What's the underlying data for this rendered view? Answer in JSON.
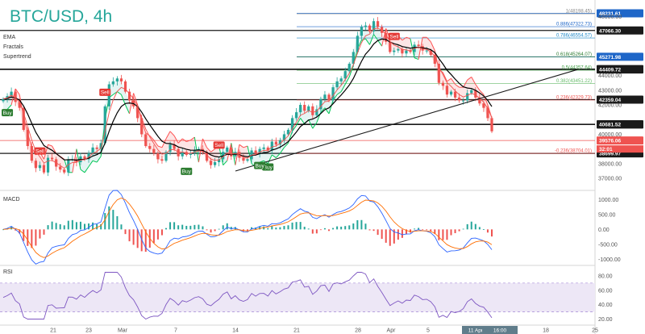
{
  "header": {
    "title": "BTC/USD, 4h",
    "indicators": [
      "EMA",
      "Fractals",
      "Supertrend"
    ]
  },
  "panels": {
    "macd_label": "MACD",
    "rsi_label": "RSI"
  },
  "chart_data": [
    {
      "type": "candlestick",
      "title": "BTC/USD, 4h",
      "x_ticks": [
        "21",
        "23",
        "Mar",
        "7",
        "14",
        "21",
        "28",
        "Apr",
        "5",
        "11 Apr '22",
        "16:00",
        "18",
        "25"
      ],
      "y_ticks": [
        "37000.00",
        "38000.00",
        "40000.00",
        "42000.00",
        "43000.00",
        "44000.00",
        "48000.00"
      ],
      "ylim": [
        36400,
        48700
      ],
      "close_series": [
        42400,
        42600,
        42900,
        42200,
        41800,
        40300,
        39200,
        38200,
        37700,
        37900,
        37400,
        38400,
        38300,
        37800,
        37600,
        37400,
        38300,
        38300,
        38100,
        38500,
        38300,
        38700,
        39100,
        39000,
        39400,
        41900,
        43400,
        43600,
        43800,
        43600,
        42900,
        42300,
        41900,
        41100,
        40000,
        39200,
        39000,
        38700,
        38300,
        38200,
        38800,
        39300,
        39000,
        38500,
        38800,
        38600,
        38700,
        38900,
        39000,
        38800,
        38200,
        37900,
        38100,
        38300,
        38800,
        39100,
        38500,
        38800,
        38400,
        38200,
        38300,
        38900,
        38700,
        39000,
        39100,
        38900,
        39500,
        39300,
        39600,
        40000,
        40300,
        41100,
        41500,
        42000,
        41600,
        41900,
        41300,
        41700,
        42400,
        42700,
        42300,
        43200,
        43600,
        43800,
        44300,
        44800,
        45600,
        46700,
        47300,
        47400,
        47000,
        47700,
        47300,
        46900,
        46300,
        45600,
        45700,
        45800,
        45500,
        45700,
        45600,
        46100,
        46000,
        45700,
        45700,
        45400,
        44800,
        43500,
        43300,
        42700,
        42900,
        42500,
        42300,
        42300,
        42800,
        43000,
        42500,
        42100,
        41800,
        41100,
        40200
      ],
      "levels": [
        {
          "label": "48231.61",
          "value": 48231.61,
          "color": "#1e66c8"
        },
        {
          "label": "47066.30",
          "value": 47066.3,
          "color": "#1a1a1a"
        },
        {
          "label": "45271.98",
          "value": 45271.98,
          "color": "#1e66c8"
        },
        {
          "label": "44438.29",
          "value": 44438.29,
          "color": "#1a1a1a"
        },
        {
          "label": "44409.72",
          "value": 44409.72,
          "color": "#1a1a1a"
        },
        {
          "label": "42359.04",
          "value": 42359.04,
          "color": "#1a1a1a"
        },
        {
          "label": "40659.96",
          "value": 40659.96,
          "color": "#1a1a1a"
        },
        {
          "label": "40681.52",
          "value": 40681.52,
          "color": "#1a1a1a"
        },
        {
          "label": "39576.06",
          "value": 39576.06,
          "color": "#ef5350"
        },
        {
          "label": "38699.97",
          "value": 38699.97,
          "color": "#1a1a1a"
        }
      ],
      "fib_levels": [
        {
          "label": "1(48198.45)",
          "value": 48198.45,
          "color": "#888888"
        },
        {
          "label": "0.886(47322.73)",
          "value": 47322.73,
          "color": "#1e66c8"
        },
        {
          "label": "0.786(46554.57)",
          "value": 46554.57,
          "color": "#1e88c8"
        },
        {
          "label": "0.618(45264.07)",
          "value": 45264.07,
          "color": "#2e7d32"
        },
        {
          "label": "0.5(44357.64)",
          "value": 44357.64,
          "color": "#43a047"
        },
        {
          "label": "0.382(43451.22)",
          "value": 43451.22,
          "color": "#66bb6a"
        },
        {
          "label": "0.236(42329.73)",
          "value": 42329.73,
          "color": "#ef5350"
        },
        {
          "label": "-0.236(38704.01)",
          "value": 38704.01,
          "color": "#ef5350"
        }
      ],
      "current_price": "39576.06",
      "countdown": "32:01",
      "signals": [
        {
          "label": "Buy",
          "kind": "buy",
          "index": 1
        },
        {
          "label": "Sell",
          "kind": "sell",
          "index": 9
        },
        {
          "label": "Buy",
          "kind": "buy",
          "index": 45
        },
        {
          "label": "Sell",
          "kind": "sell",
          "index": 25
        },
        {
          "label": "Sell",
          "kind": "sell",
          "index": 53
        },
        {
          "label": "Buy",
          "kind": "buy",
          "index": 65
        },
        {
          "label": "Buy",
          "kind": "buy",
          "index": 63
        },
        {
          "label": "Sell",
          "kind": "sell",
          "index": 96
        }
      ]
    },
    {
      "type": "line",
      "title": "MACD",
      "y_ticks": [
        "1000.00",
        "500.00",
        "0.00",
        "-500.00",
        "-1000.00"
      ],
      "ylim": [
        -1100,
        1200
      ]
    },
    {
      "type": "line",
      "title": "RSI",
      "y_ticks": [
        "80.00",
        "60.00",
        "40.00",
        "20.00"
      ],
      "ylim": [
        15,
        90
      ],
      "bands": [
        30,
        70
      ]
    }
  ],
  "colors": {
    "up": "#26a69a",
    "down": "#ef5350",
    "ema": "#000000",
    "fast_ma": "#ef5350",
    "trendline": "#1a1a1a",
    "macd": "#2962ff",
    "signal": "#ff6d00",
    "rsi": "#7e57c2",
    "rsi_band": "#ede7f6",
    "supertrend_up": "#00c853",
    "supertrend_down": "#ff5252"
  }
}
